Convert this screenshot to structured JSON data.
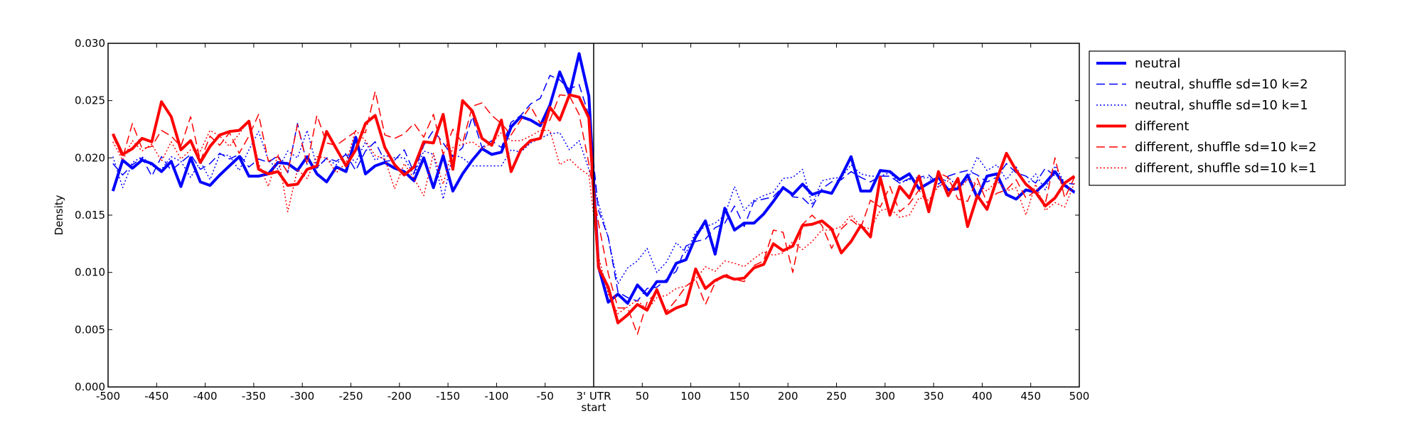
{
  "chart_data": {
    "type": "line",
    "title": "",
    "xlabel": "",
    "ylabel": "Density",
    "xlim": [
      -500,
      500
    ],
    "ylim": [
      0,
      0.03
    ],
    "x_ticks": [
      {
        "v": -500,
        "label": "-500"
      },
      {
        "v": -450,
        "label": "-450"
      },
      {
        "v": -400,
        "label": "-400"
      },
      {
        "v": -350,
        "label": "-350"
      },
      {
        "v": -300,
        "label": "-300"
      },
      {
        "v": -250,
        "label": "-250"
      },
      {
        "v": -200,
        "label": "-200"
      },
      {
        "v": -150,
        "label": "-150"
      },
      {
        "v": -100,
        "label": "-100"
      },
      {
        "v": -50,
        "label": "-50"
      },
      {
        "v": 0,
        "label": "3' UTR",
        "label2": "start"
      },
      {
        "v": 50,
        "label": "50"
      },
      {
        "v": 100,
        "label": "100"
      },
      {
        "v": 150,
        "label": "150"
      },
      {
        "v": 200,
        "label": "200"
      },
      {
        "v": 250,
        "label": "250"
      },
      {
        "v": 300,
        "label": "300"
      },
      {
        "v": 350,
        "label": "350"
      },
      {
        "v": 400,
        "label": "400"
      },
      {
        "v": 450,
        "label": "450"
      },
      {
        "v": 500,
        "label": "500"
      }
    ],
    "y_ticks": [
      {
        "v": 0.0,
        "label": "0.000"
      },
      {
        "v": 0.005,
        "label": "0.005"
      },
      {
        "v": 0.01,
        "label": "0.010"
      },
      {
        "v": 0.015,
        "label": "0.015"
      },
      {
        "v": 0.02,
        "label": "0.020"
      },
      {
        "v": 0.025,
        "label": "0.025"
      },
      {
        "v": 0.03,
        "label": "0.030"
      }
    ],
    "vline_x": 0,
    "grid": false,
    "legend_position": "outside-right-top",
    "x": [
      -495,
      -485,
      -475,
      -465,
      -455,
      -445,
      -435,
      -425,
      -415,
      -405,
      -395,
      -385,
      -375,
      -365,
      -355,
      -345,
      -335,
      -325,
      -315,
      -305,
      -295,
      -285,
      -275,
      -265,
      -255,
      -245,
      -235,
      -225,
      -215,
      -205,
      -195,
      -185,
      -175,
      -165,
      -155,
      -145,
      -135,
      -125,
      -115,
      -105,
      -95,
      -85,
      -75,
      -65,
      -55,
      -45,
      -35,
      -25,
      -15,
      -5,
      5,
      15,
      25,
      35,
      45,
      55,
      65,
      75,
      85,
      95,
      105,
      115,
      125,
      135,
      145,
      155,
      165,
      175,
      185,
      195,
      205,
      215,
      225,
      235,
      245,
      255,
      265,
      275,
      285,
      295,
      305,
      315,
      325,
      335,
      345,
      355,
      365,
      375,
      385,
      395,
      405,
      415,
      425,
      435,
      445,
      455,
      465,
      475,
      485,
      495
    ],
    "series": [
      {
        "name": "neutral",
        "color": "#0000ff",
        "style": "solid",
        "width": 4,
        "values": [
          0.0171,
          0.0198,
          0.0191,
          0.0198,
          0.0195,
          0.0188,
          0.0197,
          0.0175,
          0.02,
          0.0179,
          0.0176,
          0.0185,
          0.0193,
          0.0201,
          0.0184,
          0.0184,
          0.0186,
          0.0196,
          0.0195,
          0.0189,
          0.0201,
          0.0186,
          0.0179,
          0.0192,
          0.0188,
          0.0218,
          0.0186,
          0.0193,
          0.0196,
          0.0191,
          0.0188,
          0.018,
          0.02,
          0.0174,
          0.0202,
          0.0171,
          0.0186,
          0.0198,
          0.0208,
          0.0203,
          0.0205,
          0.0227,
          0.0236,
          0.0233,
          0.0228,
          0.0246,
          0.0275,
          0.0255,
          0.0291,
          0.0254,
          0.0105,
          0.0074,
          0.0081,
          0.0073,
          0.0089,
          0.008,
          0.0092,
          0.0092,
          0.0108,
          0.0111,
          0.0131,
          0.0145,
          0.0116,
          0.0156,
          0.0137,
          0.0143,
          0.0143,
          0.0151,
          0.0162,
          0.0174,
          0.0168,
          0.0177,
          0.0168,
          0.0171,
          0.0169,
          0.0184,
          0.0201,
          0.0171,
          0.0171,
          0.0189,
          0.0188,
          0.0181,
          0.0186,
          0.0173,
          0.0178,
          0.0183,
          0.0172,
          0.0173,
          0.0185,
          0.0165,
          0.0184,
          0.0186,
          0.0168,
          0.0164,
          0.0172,
          0.017,
          0.0178,
          0.0188,
          0.0176,
          0.017
        ]
      },
      {
        "name": "neutral, shuffle sd=10 k=2",
        "color": "#0000ff",
        "style": "dashed",
        "width": 1.5,
        "values": [
          0.0195,
          0.0185,
          0.0194,
          0.02,
          0.0184,
          0.0201,
          0.0189,
          0.0196,
          0.0203,
          0.019,
          0.0195,
          0.0204,
          0.0199,
          0.0203,
          0.0192,
          0.0199,
          0.0196,
          0.0202,
          0.0187,
          0.023,
          0.0194,
          0.0191,
          0.02,
          0.0197,
          0.0203,
          0.0189,
          0.0206,
          0.0214,
          0.0197,
          0.0198,
          0.0207,
          0.0187,
          0.0211,
          0.0224,
          0.0213,
          0.0201,
          0.0209,
          0.0236,
          0.0209,
          0.0215,
          0.0209,
          0.0231,
          0.0237,
          0.0247,
          0.0252,
          0.0272,
          0.0268,
          0.026,
          0.0264,
          0.0237,
          0.0154,
          0.0131,
          0.0083,
          0.0078,
          0.0075,
          0.0086,
          0.0087,
          0.0094,
          0.0101,
          0.0123,
          0.0127,
          0.0129,
          0.0139,
          0.0143,
          0.0158,
          0.014,
          0.0162,
          0.0164,
          0.0166,
          0.0175,
          0.0166,
          0.0165,
          0.0157,
          0.0173,
          0.0179,
          0.0181,
          0.0188,
          0.0183,
          0.0179,
          0.0184,
          0.0184,
          0.0178,
          0.0182,
          0.0183,
          0.0185,
          0.0177,
          0.0184,
          0.0187,
          0.0189,
          0.0185,
          0.0179,
          0.0183,
          0.0195,
          0.0187,
          0.0184,
          0.0178,
          0.0191,
          0.0184,
          0.0178,
          0.0177
        ]
      },
      {
        "name": "neutral, shuffle sd=10 k=1",
        "color": "#0000ff",
        "style": "dotted",
        "width": 1.5,
        "values": [
          0.0201,
          0.0174,
          0.0196,
          0.0201,
          0.0193,
          0.019,
          0.0201,
          0.0197,
          0.0183,
          0.0197,
          0.0181,
          0.0203,
          0.0202,
          0.0189,
          0.0207,
          0.0223,
          0.0198,
          0.019,
          0.0206,
          0.02,
          0.0224,
          0.0192,
          0.0199,
          0.0194,
          0.0204,
          0.0196,
          0.0214,
          0.0198,
          0.0202,
          0.02,
          0.02,
          0.0185,
          0.0206,
          0.0203,
          0.0164,
          0.0203,
          0.02,
          0.0193,
          0.0193,
          0.0193,
          0.0193,
          0.0207,
          0.0205,
          0.0213,
          0.0217,
          0.0221,
          0.0222,
          0.0207,
          0.0215,
          0.019,
          0.016,
          0.013,
          0.009,
          0.0104,
          0.011,
          0.0121,
          0.01,
          0.0109,
          0.0126,
          0.0117,
          0.0135,
          0.014,
          0.0143,
          0.015,
          0.0175,
          0.0154,
          0.0163,
          0.0167,
          0.017,
          0.0182,
          0.0183,
          0.019,
          0.0159,
          0.018,
          0.0182,
          0.0183,
          0.0194,
          0.0186,
          0.0184,
          0.0184,
          0.0187,
          0.0178,
          0.0181,
          0.0182,
          0.0183,
          0.0174,
          0.0183,
          0.0175,
          0.0181,
          0.0201,
          0.0189,
          0.0194,
          0.0181,
          0.0192,
          0.0176,
          0.0186,
          0.0172,
          0.0193,
          0.0178,
          0.0169
        ]
      },
      {
        "name": "different",
        "color": "#ff0000",
        "style": "solid",
        "width": 4,
        "values": [
          0.0221,
          0.0203,
          0.0208,
          0.0217,
          0.0214,
          0.0249,
          0.0236,
          0.0207,
          0.0215,
          0.0196,
          0.021,
          0.022,
          0.0223,
          0.0224,
          0.0232,
          0.019,
          0.0186,
          0.0188,
          0.0176,
          0.0177,
          0.019,
          0.0193,
          0.0223,
          0.0208,
          0.0193,
          0.0207,
          0.023,
          0.0237,
          0.0209,
          0.0194,
          0.0185,
          0.0192,
          0.0214,
          0.0213,
          0.0238,
          0.019,
          0.025,
          0.0241,
          0.0217,
          0.0211,
          0.0233,
          0.0188,
          0.0207,
          0.0215,
          0.0217,
          0.0244,
          0.0233,
          0.0255,
          0.0253,
          0.0235,
          0.0104,
          0.0087,
          0.0056,
          0.0063,
          0.0072,
          0.0067,
          0.0085,
          0.0064,
          0.0069,
          0.0072,
          0.0103,
          0.0086,
          0.0093,
          0.0097,
          0.0094,
          0.0095,
          0.0104,
          0.0107,
          0.0125,
          0.0119,
          0.0123,
          0.0141,
          0.0142,
          0.0145,
          0.0138,
          0.0117,
          0.0127,
          0.0141,
          0.0131,
          0.0183,
          0.015,
          0.0175,
          0.0165,
          0.0184,
          0.0153,
          0.0188,
          0.0167,
          0.0182,
          0.014,
          0.0167,
          0.0155,
          0.0181,
          0.0204,
          0.0189,
          0.0177,
          0.017,
          0.0158,
          0.0165,
          0.0178,
          0.0184
        ]
      },
      {
        "name": "different, shuffle sd=10 k=2",
        "color": "#ff0000",
        "style": "dashed",
        "width": 1.5,
        "values": [
          0.0219,
          0.02,
          0.023,
          0.0208,
          0.021,
          0.0224,
          0.0219,
          0.021,
          0.0236,
          0.0197,
          0.0219,
          0.0211,
          0.0222,
          0.0204,
          0.0219,
          0.0238,
          0.0197,
          0.0201,
          0.0187,
          0.0229,
          0.0194,
          0.0237,
          0.0213,
          0.0211,
          0.0217,
          0.0223,
          0.0222,
          0.0258,
          0.022,
          0.0217,
          0.0221,
          0.023,
          0.0218,
          0.0238,
          0.0203,
          0.0225,
          0.0213,
          0.0245,
          0.0248,
          0.0237,
          0.023,
          0.022,
          0.0233,
          0.0245,
          0.023,
          0.0233,
          0.0255,
          0.0254,
          0.0238,
          0.0195,
          0.0143,
          0.0099,
          0.0069,
          0.0069,
          0.0046,
          0.0074,
          0.0083,
          0.0066,
          0.0076,
          0.0088,
          0.0094,
          0.0072,
          0.0091,
          0.0099,
          0.0094,
          0.0092,
          0.0106,
          0.011,
          0.0137,
          0.0135,
          0.01,
          0.0142,
          0.015,
          0.0141,
          0.0121,
          0.0138,
          0.0146,
          0.0139,
          0.0163,
          0.0157,
          0.0175,
          0.0153,
          0.016,
          0.0172,
          0.0158,
          0.0187,
          0.0183,
          0.0164,
          0.0162,
          0.0182,
          0.0161,
          0.0169,
          0.0172,
          0.0181,
          0.0165,
          0.0171,
          0.016,
          0.02,
          0.0165,
          0.0183
        ]
      },
      {
        "name": "different, shuffle sd=10 k=1",
        "color": "#ff0000",
        "style": "dotted",
        "width": 1.5,
        "values": [
          0.0214,
          0.0198,
          0.0215,
          0.0206,
          0.0212,
          0.0197,
          0.0214,
          0.0199,
          0.0207,
          0.0206,
          0.0224,
          0.0219,
          0.021,
          0.0221,
          0.0233,
          0.0195,
          0.0175,
          0.0203,
          0.0153,
          0.019,
          0.0182,
          0.0201,
          0.02,
          0.0187,
          0.0196,
          0.0224,
          0.0215,
          0.0202,
          0.0199,
          0.0173,
          0.0195,
          0.0182,
          0.0167,
          0.0204,
          0.0177,
          0.0209,
          0.0212,
          0.0214,
          0.0208,
          0.0213,
          0.0222,
          0.0215,
          0.0215,
          0.0219,
          0.0224,
          0.0224,
          0.0194,
          0.0199,
          0.0191,
          0.0185,
          0.0114,
          0.0081,
          0.0064,
          0.007,
          0.0076,
          0.0067,
          0.0078,
          0.008,
          0.0086,
          0.0088,
          0.0094,
          0.0105,
          0.0101,
          0.011,
          0.0108,
          0.0105,
          0.0112,
          0.0118,
          0.0115,
          0.0117,
          0.0127,
          0.012,
          0.0127,
          0.0137,
          0.0137,
          0.014,
          0.015,
          0.014,
          0.0138,
          0.0154,
          0.0156,
          0.0148,
          0.015,
          0.0165,
          0.0163,
          0.0175,
          0.018,
          0.0172,
          0.0181,
          0.0177,
          0.0171,
          0.018,
          0.0171,
          0.0174,
          0.015,
          0.0177,
          0.0154,
          0.0161,
          0.0157,
          0.0178
        ]
      }
    ]
  }
}
